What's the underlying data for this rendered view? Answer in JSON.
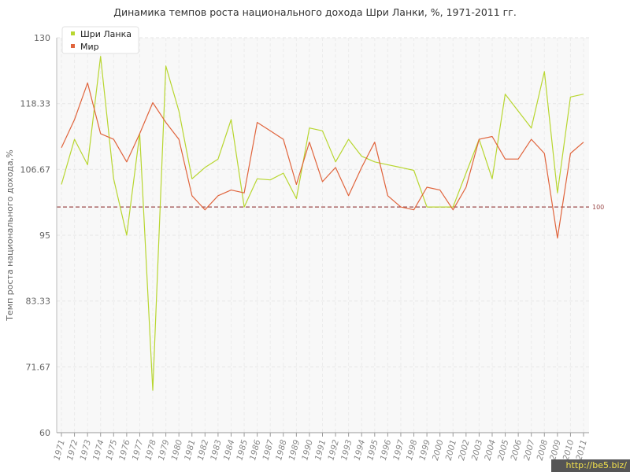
{
  "chart_data": {
    "type": "line",
    "title": "Динамика темпов роста национального дохода Шри Ланки, %, 1971-2011 гг.",
    "xlabel": "",
    "ylabel": "Темп роста национального дохода,%",
    "ylim": [
      60,
      130
    ],
    "yticks": [
      "60",
      "71.67",
      "83.33",
      "95",
      "106.67",
      "118.33",
      "130"
    ],
    "categories": [
      "1971",
      "1972",
      "1973",
      "1974",
      "1975",
      "1976",
      "1977",
      "1978",
      "1979",
      "1980",
      "1981",
      "1982",
      "1983",
      "1984",
      "1985",
      "1986",
      "1987",
      "1988",
      "1989",
      "1990",
      "1991",
      "1992",
      "1993",
      "1994",
      "1995",
      "1996",
      "1997",
      "1998",
      "1999",
      "2000",
      "2001",
      "2002",
      "2003",
      "2004",
      "2005",
      "2006",
      "2007",
      "2008",
      "2009",
      "2010",
      "2011"
    ],
    "reference_line": {
      "value": 100,
      "label": "100",
      "color": "#9b4a4a"
    },
    "grid": true,
    "legend_position": "top-left",
    "series": [
      {
        "name": "Шри Ланка",
        "color": "#b8d630",
        "values": [
          104.0,
          112.0,
          107.5,
          126.7,
          105.0,
          95.0,
          113.0,
          67.5,
          125.0,
          117.0,
          105.0,
          107.0,
          108.5,
          115.5,
          100.0,
          105.0,
          104.8,
          106.0,
          101.5,
          114.0,
          113.5,
          108.0,
          112.0,
          109.0,
          108.0,
          107.5,
          107.0,
          106.5,
          100.0,
          100.0,
          100.0,
          106.0,
          112.0,
          105.0,
          120.0,
          117.0,
          114.0,
          124.0,
          102.5,
          119.5,
          120.0
        ]
      },
      {
        "name": "Мир",
        "color": "#e0643c",
        "values": [
          110.5,
          115.5,
          122.0,
          113.0,
          112.0,
          108.0,
          113.0,
          118.5,
          115.0,
          112.0,
          102.0,
          99.5,
          102.0,
          103.0,
          102.5,
          115.0,
          113.5,
          112.0,
          104.0,
          111.5,
          104.5,
          107.0,
          102.0,
          107.0,
          111.5,
          102.0,
          100.0,
          99.5,
          103.5,
          103.0,
          99.5,
          103.5,
          112.0,
          112.5,
          108.5,
          108.5,
          112.0,
          109.5,
          94.5,
          109.5,
          111.5
        ]
      }
    ]
  },
  "watermark": "http://be5.biz/"
}
